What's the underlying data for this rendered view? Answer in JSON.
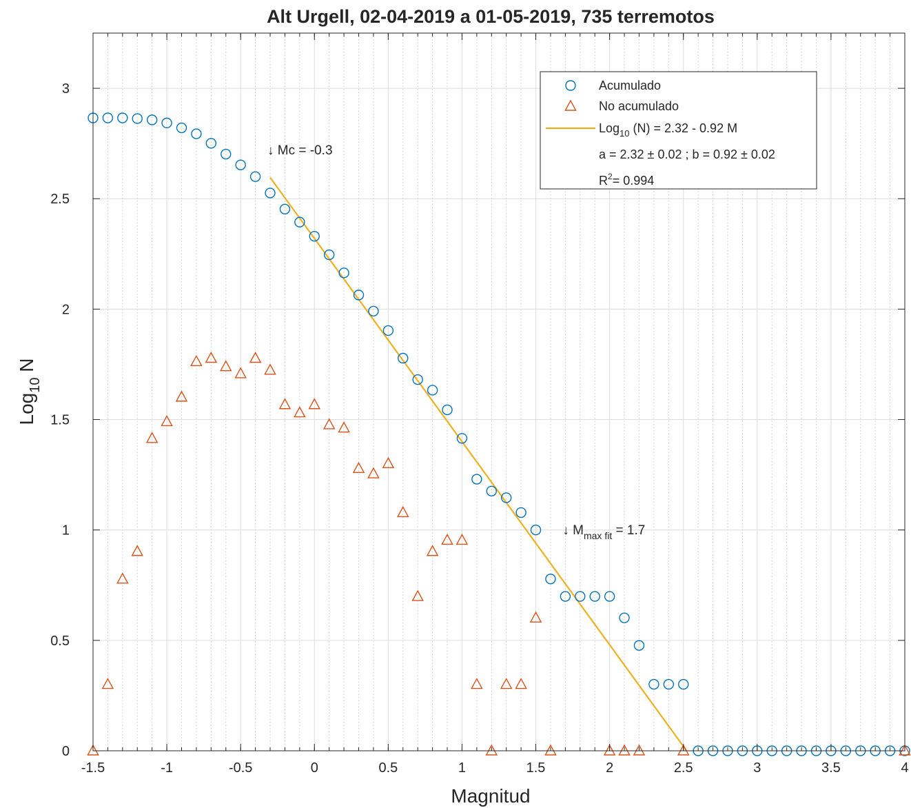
{
  "chart_data": {
    "type": "scatter",
    "title": "Alt Urgell, 02-04-2019 a 01-05-2019, 735 terremotos",
    "xlabel": "Magnitud",
    "ylabel": {
      "base": "Log",
      "sub": "10",
      "rest": " N"
    },
    "xlim": [
      -1.5,
      4
    ],
    "ylim": [
      0,
      3.25
    ],
    "xticks": [
      -1.5,
      -1,
      -0.5,
      0,
      0.5,
      1,
      1.5,
      2,
      2.5,
      3,
      3.5,
      4
    ],
    "xtick_labels": [
      "-1.5",
      "-1",
      "-0.5",
      "0",
      "0.5",
      "1",
      "1.5",
      "2",
      "2.5",
      "3",
      "3.5",
      "4"
    ],
    "yticks": [
      0,
      0.5,
      1,
      1.5,
      2,
      2.5,
      3
    ],
    "ytick_labels": [
      "0",
      "0.5",
      "1",
      "1.5",
      "2",
      "2.5",
      "3"
    ],
    "minor_x_step": 0.1,
    "grid": true,
    "legend_position": "top-right",
    "series": [
      {
        "name": "Acumulado",
        "marker": "circle",
        "color": "#0072BD",
        "x": [
          -1.5,
          -1.4,
          -1.3,
          -1.2,
          -1.1,
          -1.0,
          -0.9,
          -0.8,
          -0.7,
          -0.6,
          -0.5,
          -0.4,
          -0.3,
          -0.2,
          -0.1,
          0.0,
          0.1,
          0.2,
          0.3,
          0.4,
          0.5,
          0.6,
          0.7,
          0.8,
          0.9,
          1.0,
          1.1,
          1.2,
          1.3,
          1.4,
          1.5,
          1.6,
          1.7,
          1.8,
          1.9,
          2.0,
          2.1,
          2.2,
          2.3,
          2.4,
          2.5,
          2.6,
          2.7,
          2.8,
          2.9,
          3.0,
          3.1,
          3.2,
          3.3,
          3.4,
          3.5,
          3.6,
          3.7,
          3.8,
          3.9,
          4.0
        ],
        "y": [
          2.866,
          2.866,
          2.866,
          2.863,
          2.857,
          2.843,
          2.821,
          2.794,
          2.751,
          2.702,
          2.653,
          2.6,
          2.526,
          2.453,
          2.394,
          2.33,
          2.246,
          2.164,
          2.064,
          1.991,
          1.903,
          1.778,
          1.681,
          1.633,
          1.544,
          1.415,
          1.23,
          1.176,
          1.146,
          1.079,
          1.0,
          0.778,
          0.699,
          0.699,
          0.699,
          0.699,
          0.602,
          0.477,
          0.301,
          0.301,
          0.301,
          0,
          0,
          0,
          0,
          0,
          0,
          0,
          0,
          0,
          0,
          0,
          0,
          0,
          0,
          0
        ]
      },
      {
        "name": "No acumulado",
        "marker": "triangle",
        "color": "#D95319",
        "x": [
          -1.5,
          -1.4,
          -1.3,
          -1.2,
          -1.1,
          -1.0,
          -0.9,
          -0.8,
          -0.7,
          -0.6,
          -0.5,
          -0.4,
          -0.3,
          -0.2,
          -0.1,
          0.0,
          0.1,
          0.2,
          0.3,
          0.4,
          0.5,
          0.6,
          0.7,
          0.8,
          0.9,
          1.0,
          1.1,
          1.2,
          1.3,
          1.4,
          1.5,
          1.6,
          2.0,
          2.1,
          2.2,
          2.5,
          4.0
        ],
        "y": [
          0,
          0.301,
          0.778,
          0.903,
          1.415,
          1.491,
          1.602,
          1.763,
          1.778,
          1.74,
          1.708,
          1.778,
          1.724,
          1.568,
          1.531,
          1.568,
          1.477,
          1.462,
          1.279,
          1.255,
          1.301,
          1.079,
          0.699,
          0.903,
          0.954,
          0.954,
          0.301,
          0,
          0.301,
          0.301,
          0.602,
          0,
          0,
          0,
          0,
          0,
          0
        ]
      }
    ],
    "fit_line": {
      "label": "Log10 (N) = 2.32 - 0.92 M",
      "color": "#EDB120",
      "a": 2.32,
      "b": 0.92,
      "x_range": [
        -0.3,
        2.52
      ]
    },
    "legend": {
      "items": [
        {
          "label": "Acumulado"
        },
        {
          "label": "No acumulado"
        },
        {
          "label_base": "Log",
          "label_sub": "10",
          "label_rest": " (N) = 2.32 - 0.92 M"
        }
      ],
      "line4": "a = 2.32 ± 0.02 ; b = 0.92 ± 0.02",
      "line5_base": "R",
      "line5_sup": "2",
      "line5_rest": "= 0.994"
    },
    "annotations": {
      "mc": {
        "text": "↓ Mc =  -0.3",
        "x": -0.3,
        "y": 2.7
      },
      "mmax": {
        "arrow": "↓ M",
        "sub": "max fit",
        "rest": " =  1.7",
        "x": 1.7,
        "y": 0.98
      }
    }
  }
}
